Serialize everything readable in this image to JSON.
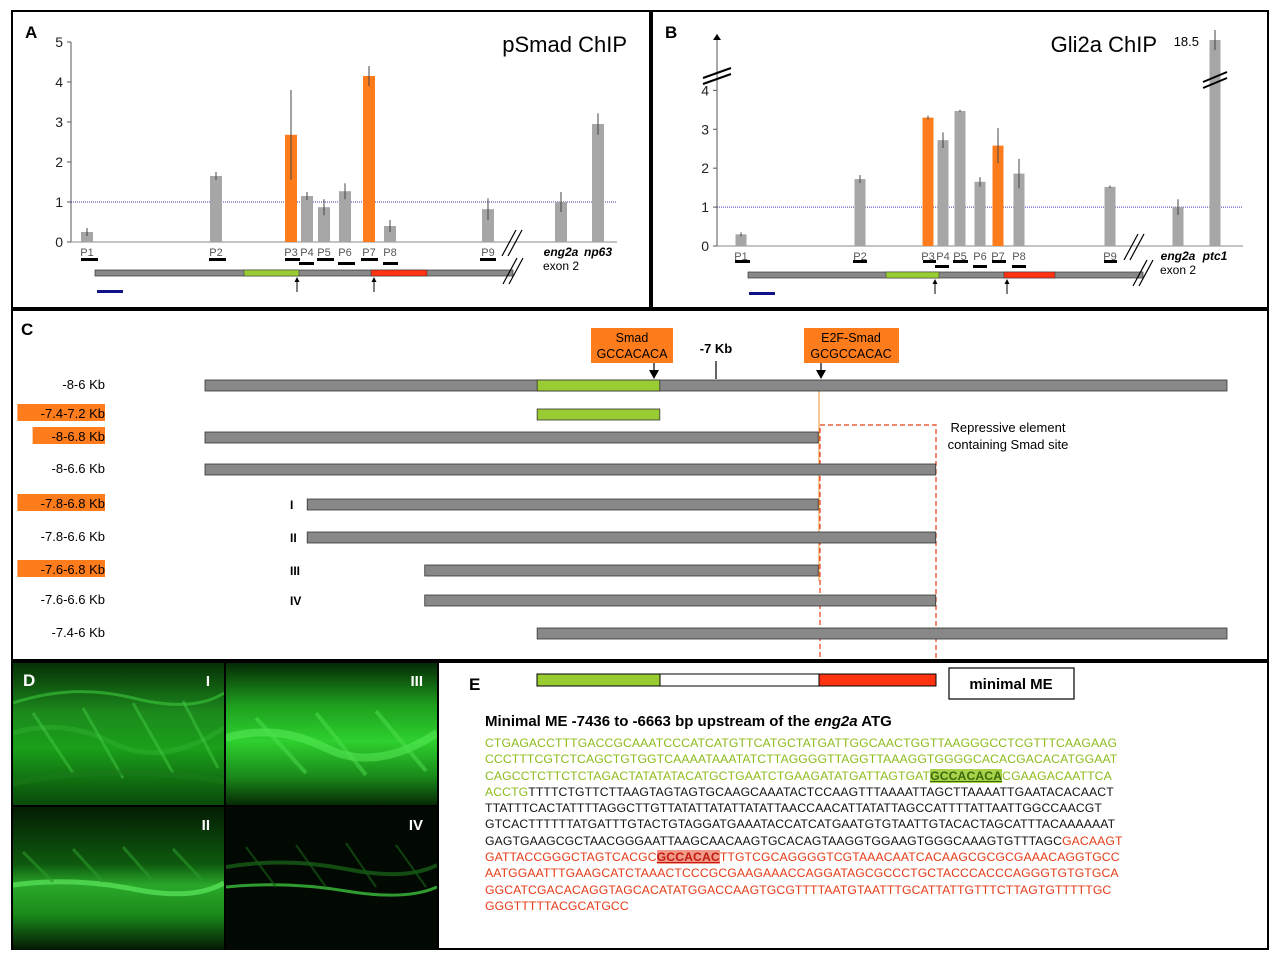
{
  "panels": {
    "A": {
      "letter": "A",
      "title": "pSmad ChIP"
    },
    "B": {
      "letter": "B",
      "title": "Gli2a ChIP",
      "break_value": "18.5"
    },
    "C": {
      "letter": "C"
    },
    "D": {
      "letter": "D",
      "tiles": [
        "I",
        "III",
        "II",
        "IV"
      ]
    },
    "E": {
      "letter": "E"
    }
  },
  "chart_data": [
    {
      "type": "bar",
      "title": "pSmad ChIP",
      "yticks": [
        "0",
        "1",
        "2",
        "3",
        "4",
        "5"
      ],
      "ylim": [
        0,
        5
      ],
      "reference_line": 1,
      "categories": [
        "P1",
        "P2",
        "P3",
        "P4",
        "P5",
        "P6",
        "P7",
        "P8",
        "P9",
        "eng2a exon 2",
        "np63"
      ],
      "category_labels": [
        "P1",
        "P2",
        "P3",
        "P4",
        "P5",
        "P6",
        "P7",
        "P8",
        "P9",
        "eng2a",
        "np63"
      ],
      "sublabel": "exon 2",
      "values": [
        0.25,
        1.65,
        2.68,
        1.15,
        0.87,
        1.27,
        4.15,
        0.4,
        0.82,
        1.0,
        2.95
      ],
      "errors": [
        0.1,
        0.1,
        1.12,
        0.1,
        0.2,
        0.2,
        0.25,
        0.15,
        0.27,
        0.25,
        0.27
      ],
      "highlight": [
        "P3",
        "P7"
      ],
      "colors": {
        "bar": "#a6a6a6",
        "highlight": "#ff7c1c",
        "reference": "#3a3aa8"
      }
    },
    {
      "type": "bar",
      "title": "Gli2a ChIP",
      "yticks": [
        "0",
        "1",
        "2",
        "3",
        "4"
      ],
      "ylim": [
        0,
        4.6
      ],
      "axis_break": true,
      "break_value": 18.5,
      "reference_line": 1,
      "categories": [
        "P1",
        "P2",
        "P3",
        "P4",
        "P5",
        "P6",
        "P7",
        "P8",
        "P9",
        "eng2a exon 2",
        "ptc1"
      ],
      "category_labels": [
        "P1",
        "P2",
        "P3",
        "P4",
        "P5",
        "P6",
        "P7",
        "P8",
        "P9",
        "eng2a",
        "ptc1"
      ],
      "sublabel": "exon 2",
      "values": [
        0.3,
        1.72,
        3.3,
        2.72,
        3.47,
        1.65,
        2.58,
        1.86,
        1.52,
        1.0,
        18.5
      ],
      "errors": [
        0.05,
        0.1,
        0.05,
        0.2,
        0.03,
        0.12,
        0.45,
        0.38,
        0.03,
        0.2,
        0.5
      ],
      "highlight": [
        "P3",
        "P7"
      ],
      "colors": {
        "bar": "#a6a6a6",
        "highlight": "#ff7c1c",
        "reference": "#3a3aa8"
      }
    }
  ],
  "constructs": {
    "smad_label": "Smad",
    "smad_seq": "GCCACACA",
    "e2f_label": "E2F-Smad",
    "e2f_seq": "GCGCCACAC",
    "kb_mark": "-7 Kb",
    "repressive_note_1": "Repressive element",
    "repressive_note_2": "containing Smad site",
    "rows": [
      {
        "label": "-8-6 Kb",
        "highlight": false,
        "roman": "",
        "start": -8.0,
        "end": -6.0
      },
      {
        "label": "-7.4-7.2 Kb",
        "highlight": true,
        "roman": "",
        "start": -7.35,
        "end": -7.11
      },
      {
        "label": "-8-6.8 Kb",
        "highlight": true,
        "roman": "",
        "start": -8.0,
        "end": -6.8
      },
      {
        "label": "-8-6.6 Kb",
        "highlight": false,
        "roman": "",
        "start": -8.0,
        "end": -6.57
      },
      {
        "label": "-7.8-6.8 Kb",
        "highlight": true,
        "roman": "I",
        "start": -7.8,
        "end": -6.8
      },
      {
        "label": "-7.8-6.6 Kb",
        "highlight": false,
        "roman": "II",
        "start": -7.8,
        "end": -6.57
      },
      {
        "label": "-7.6-6.8 Kb",
        "highlight": true,
        "roman": "III",
        "start": -7.57,
        "end": -6.8
      },
      {
        "label": "-7.6-6.6 Kb",
        "highlight": false,
        "roman": "IV",
        "start": -7.57,
        "end": -6.57
      },
      {
        "label": "-7.4-6 Kb",
        "highlight": false,
        "roman": "",
        "start": -7.35,
        "end": -6.0
      }
    ],
    "colors": {
      "bar": "#888888",
      "green": "#99cc33",
      "red": "#ff3311",
      "highlight_label": "#ff7c1c"
    }
  },
  "minimal_me": {
    "box_label": "minimal ME",
    "title_prefix": "Minimal ME -7436 to -6663 bp upstream of the ",
    "title_gene": "eng2a",
    "title_suffix": " ATG",
    "lines": [
      [
        {
          "t": "CTGAGACCTTTGACCGCAAATCCCATCATGTTCATGCTATGATTGGCAACTGGTTAAGGGCCTCGTTTCAAGAAG",
          "c": "green"
        }
      ],
      [
        {
          "t": "CCCTTTCGTCTCAGCTGTGGTCAAAATAAATATCTTAGGGGTTAGGTTAAAGGTGGGGCACACGACACATGGAAT",
          "c": "green"
        }
      ],
      [
        {
          "t": "CAGCCTCTTCTCTAGACTATATATACATGCTGAATCTGAAGATATGATTAGTGAT",
          "c": "green"
        },
        {
          "t": "GCCACACA",
          "c": "site-g"
        },
        {
          "t": "CGAAGACAATTCA",
          "c": "green"
        }
      ],
      [
        {
          "t": "ACCTG",
          "c": "green"
        },
        {
          "t": "TTTTCTGTTCTTAAGTAGTAGTGCAAGCAAATACTCCAAGTTTAAAATTAGCTTAAAATTGAATACACAACT",
          "c": "black"
        }
      ],
      [
        {
          "t": "TTATTTCACTATTTTAGGCTTGTTATATTATATTATATTAACCAACATTATATTAGCCATTTTATTAATTGGCCAACGT",
          "c": "black"
        }
      ],
      [
        {
          "t": "GTCACTTTTTTATGATTTGTACTGTAGGATGAAATACCATCATGAATGTGTAATTGTACACTAGCATTTACAAAAAAT",
          "c": "black"
        }
      ],
      [
        {
          "t": "GAGTGAAGCGCTAACGGGAATTAAGCAACAAGTGCACAGTAAGGTGGAAGTGGGCAAAGTGTTTAGC",
          "c": "black"
        },
        {
          "t": "GACAAGT",
          "c": "red"
        }
      ],
      [
        {
          "t": "GATTACCGGGCTAGTCACGC",
          "c": "red"
        },
        {
          "t": "GCCACAC",
          "c": "site-r"
        },
        {
          "t": "TTGTCGCAGGGGTCGTAAACAATCACAAGCGCGCGAAACAGGTGCC",
          "c": "red"
        }
      ],
      [
        {
          "t": "AATGGAATTTGAAGCATCTAAACTCCCGCGAAGAAACCAGGATAGCGCCCTGCTACCCACCCAGGGTGTGTGCA",
          "c": "red"
        }
      ],
      [
        {
          "t": "GGCATCGACACAGGTAGCACATATGGACCAAGTGCGTTTTAATGTAATTTGCATTATTGTTTCTTAGTGTTTTTGC",
          "c": "red"
        }
      ],
      [
        {
          "t": "GGGTTTTTACGCATGCC",
          "c": "red"
        }
      ]
    ]
  }
}
